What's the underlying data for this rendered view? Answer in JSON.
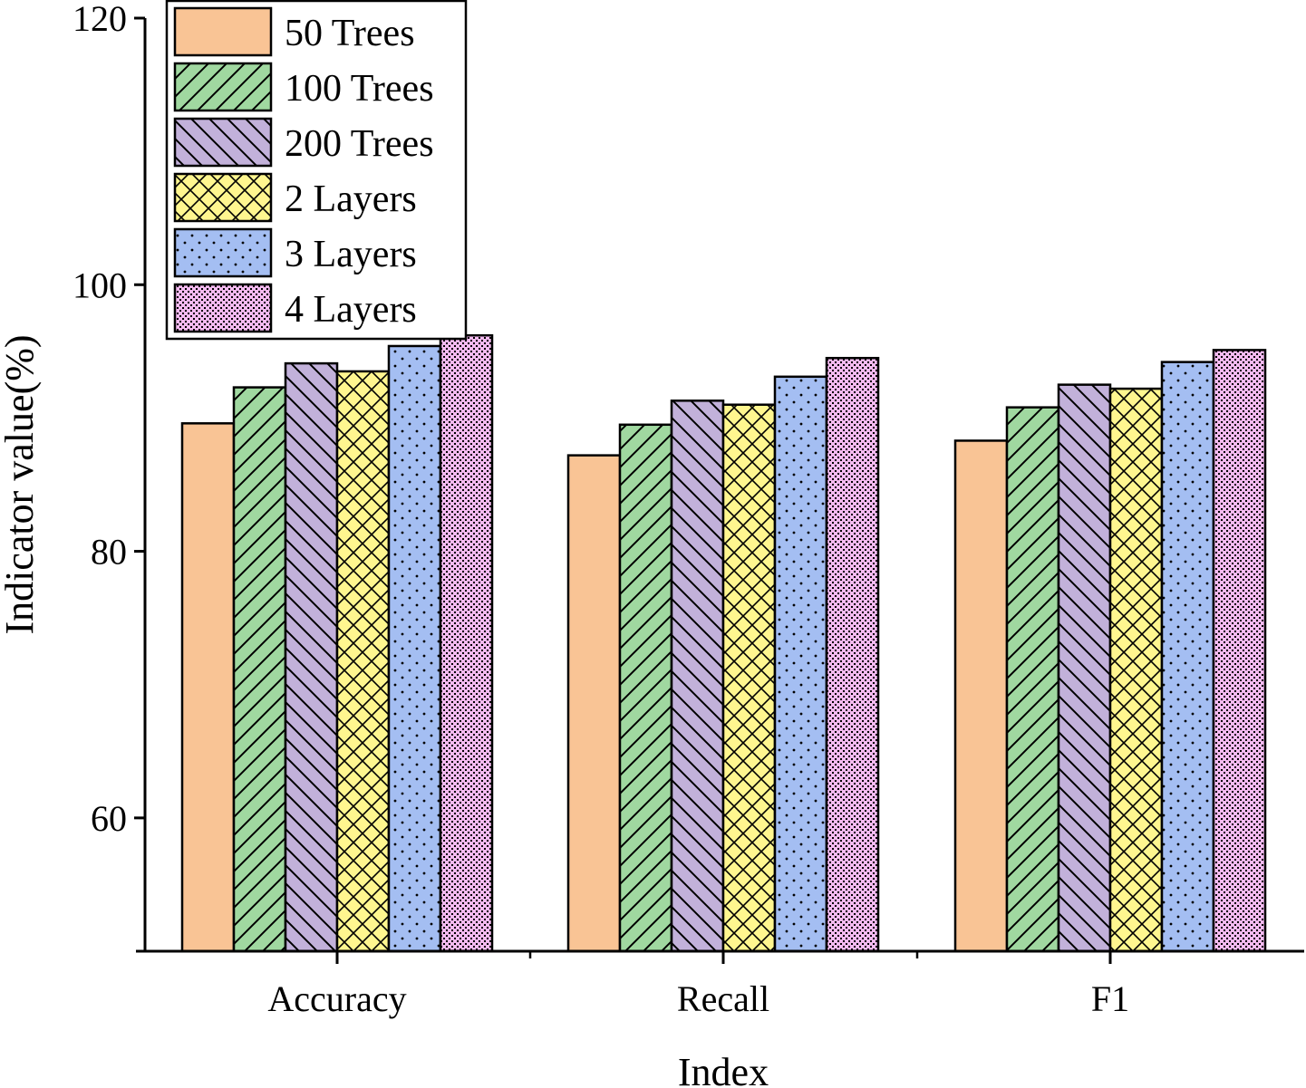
{
  "chart_data": {
    "type": "bar",
    "title": "",
    "xlabel": "Index",
    "ylabel": "Indicator value(%)",
    "ylim": [
      50,
      120
    ],
    "yticks": [
      60,
      80,
      100,
      120
    ],
    "categories": [
      "Accuracy",
      "Recall",
      "F1"
    ],
    "legend_position": "top-left",
    "series": [
      {
        "name": "50 Trees",
        "values": [
          89.6,
          87.2,
          88.3
        ],
        "color": "#F9C495",
        "pattern": "none"
      },
      {
        "name": "100 Trees",
        "values": [
          92.3,
          89.5,
          90.8
        ],
        "color": "#A0D8A0",
        "pattern": "diagonal-up"
      },
      {
        "name": "200 Trees",
        "values": [
          94.1,
          91.3,
          92.5
        ],
        "color": "#C2B1DA",
        "pattern": "diagonal-down"
      },
      {
        "name": "2 Layers",
        "values": [
          93.5,
          91.0,
          92.2
        ],
        "color": "#FFF68F",
        "pattern": "crosshatch"
      },
      {
        "name": "3 Layers",
        "values": [
          95.4,
          93.1,
          94.2
        ],
        "color": "#A4BEF2",
        "pattern": "dots"
      },
      {
        "name": "4 Layers",
        "values": [
          96.2,
          94.5,
          95.1
        ],
        "color": "#F4BAF0",
        "pattern": "dense-dots"
      }
    ]
  }
}
